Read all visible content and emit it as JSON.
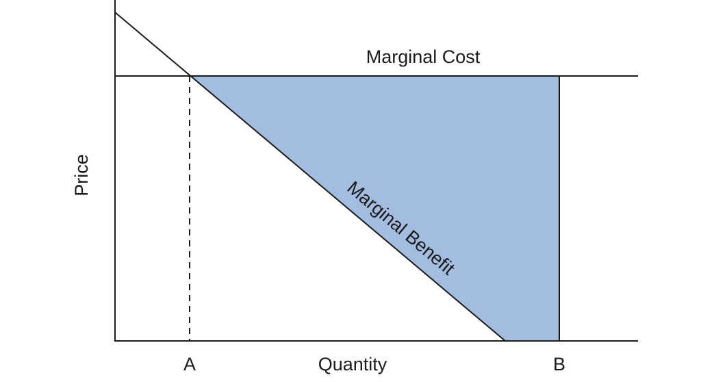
{
  "diagram": {
    "marginal_cost_label": "Marginal Cost",
    "marginal_benefit_label": "Marginal Benefit",
    "x_axis_label": "Quantity",
    "y_axis_label": "Price",
    "point_a_label": "A",
    "point_b_label": "B",
    "shaded_area_color": "#a3bde0",
    "line_color": "#1a1a1a"
  }
}
